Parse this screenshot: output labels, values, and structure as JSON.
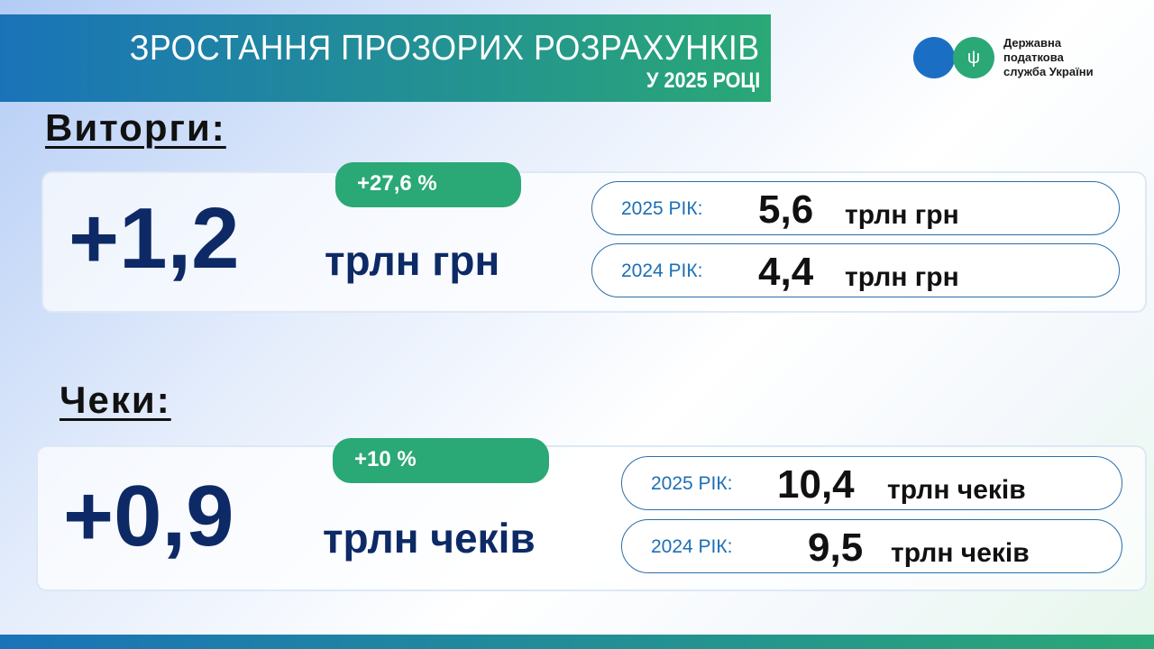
{
  "header": {
    "title": "ЗРОСТАННЯ ПРОЗОРИХ РОЗРАХУНКІВ",
    "subtitle": "У 2025 РОЦІ"
  },
  "logo": {
    "line1": "Державна",
    "line2": "податкова",
    "line3": "служба України",
    "icon": "trident-icon"
  },
  "colors": {
    "blue": "#1a73b8",
    "green": "#2aa876",
    "navy": "#0d2a66"
  },
  "revenue": {
    "title": "Виторги:",
    "delta": "+1,2",
    "unit": "трлн грн",
    "percent": "+27,6 %",
    "rows": [
      {
        "year": "2025 РІК:",
        "value": "5,6",
        "unit": "трлн грн"
      },
      {
        "year": "2024 РІК:",
        "value": "4,4",
        "unit": "трлн грн"
      }
    ]
  },
  "checks": {
    "title": "Чеки:",
    "delta": "+0,9",
    "unit": "трлн чеків",
    "percent": "+10 %",
    "rows": [
      {
        "year": "2025 РІК:",
        "value": "10,4",
        "unit": "трлн чеків"
      },
      {
        "year": "2024 РІК:",
        "value": "9,5",
        "unit": "трлн чеків"
      }
    ]
  }
}
